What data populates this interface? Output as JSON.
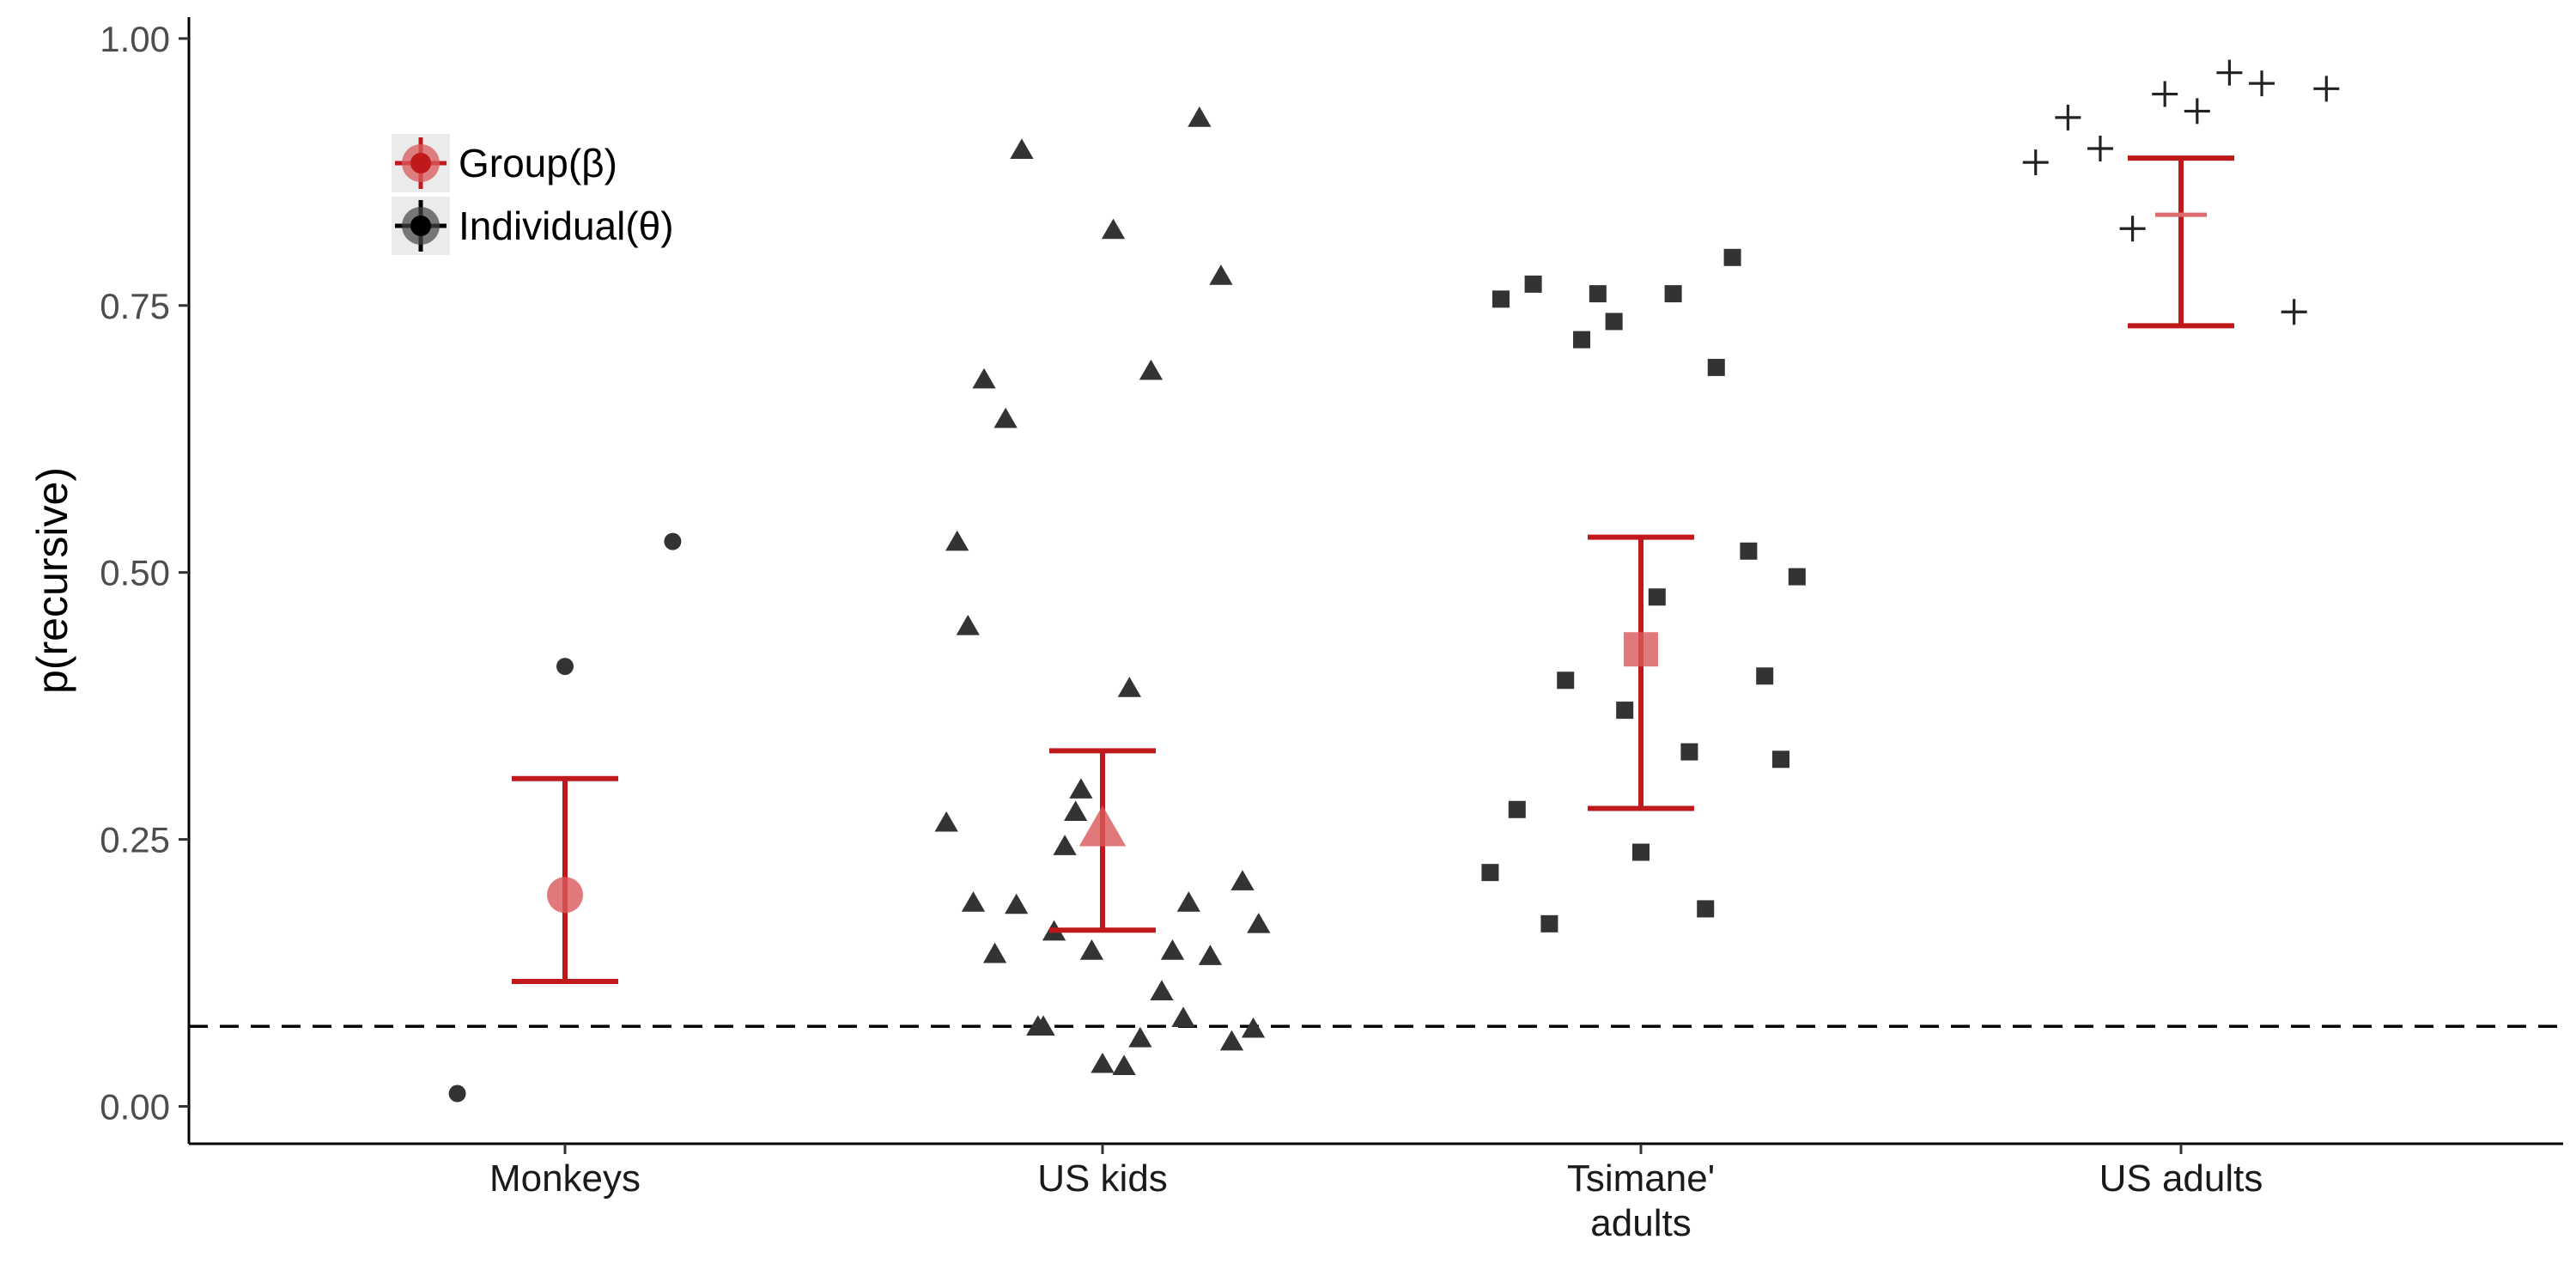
{
  "chart_data": {
    "type": "scatter",
    "ylabel": "p(recursive)",
    "xlabel": "",
    "ylim": [
      -0.035,
      1.02
    ],
    "yticks": [
      0,
      0.25,
      0.5,
      0.75,
      1.0
    ],
    "ytick_labels": [
      "0.00",
      "0.25",
      "0.50",
      "0.75",
      "1.00"
    ],
    "grid": false,
    "legend_position": "top-left",
    "chance_line": 0.075,
    "categories": [
      {
        "key": "monkeys",
        "label_lines": [
          "Monkeys"
        ],
        "shape": "circle"
      },
      {
        "key": "us_kids",
        "label_lines": [
          "US kids"
        ],
        "shape": "triangle"
      },
      {
        "key": "tsimane",
        "label_lines": [
          "Tsimane'",
          "adults"
        ],
        "shape": "square"
      },
      {
        "key": "us_adults",
        "label_lines": [
          "US adults"
        ],
        "shape": "plus"
      }
    ],
    "legend": [
      {
        "label": "Group(β)",
        "color": "#c0191c"
      },
      {
        "label": "Individual(θ)",
        "color": "#000000"
      }
    ],
    "group": [
      {
        "category": "monkeys",
        "estimate": 0.198,
        "lower": 0.117,
        "upper": 0.307
      },
      {
        "category": "us_kids",
        "estimate": 0.259,
        "lower": 0.165,
        "upper": 0.333
      },
      {
        "category": "tsimane",
        "estimate": 0.428,
        "lower": 0.279,
        "upper": 0.533
      },
      {
        "category": "us_adults",
        "estimate": 0.835,
        "lower": 0.731,
        "upper": 0.888
      }
    ],
    "individual": [
      {
        "category": "monkeys",
        "points": [
          {
            "x": -0.2,
            "y": 0.012
          },
          {
            "x": 0.0,
            "y": 0.412
          },
          {
            "x": 0.2,
            "y": 0.529
          }
        ]
      },
      {
        "category": "us_kids",
        "points": [
          {
            "x": 0.18,
            "y": 0.925
          },
          {
            "x": -0.15,
            "y": 0.895
          },
          {
            "x": 0.02,
            "y": 0.82
          },
          {
            "x": 0.22,
            "y": 0.777
          },
          {
            "x": 0.09,
            "y": 0.688
          },
          {
            "x": -0.22,
            "y": 0.68
          },
          {
            "x": -0.18,
            "y": 0.643
          },
          {
            "x": -0.27,
            "y": 0.528
          },
          {
            "x": -0.25,
            "y": 0.449
          },
          {
            "x": 0.05,
            "y": 0.391
          },
          {
            "x": -0.04,
            "y": 0.296
          },
          {
            "x": -0.05,
            "y": 0.275
          },
          {
            "x": -0.29,
            "y": 0.265
          },
          {
            "x": -0.07,
            "y": 0.243
          },
          {
            "x": 0.26,
            "y": 0.21
          },
          {
            "x": -0.24,
            "y": 0.19
          },
          {
            "x": -0.16,
            "y": 0.188
          },
          {
            "x": 0.16,
            "y": 0.19
          },
          {
            "x": 0.29,
            "y": 0.17
          },
          {
            "x": -0.09,
            "y": 0.163
          },
          {
            "x": -0.02,
            "y": 0.145
          },
          {
            "x": 0.13,
            "y": 0.145
          },
          {
            "x": -0.2,
            "y": 0.142
          },
          {
            "x": 0.2,
            "y": 0.14
          },
          {
            "x": 0.11,
            "y": 0.107
          },
          {
            "x": 0.15,
            "y": 0.082
          },
          {
            "x": -0.12,
            "y": 0.074
          },
          {
            "x": -0.11,
            "y": 0.074
          },
          {
            "x": 0.28,
            "y": 0.072
          },
          {
            "x": 0.07,
            "y": 0.063
          },
          {
            "x": 0.24,
            "y": 0.06
          },
          {
            "x": 0.0,
            "y": 0.039
          },
          {
            "x": 0.04,
            "y": 0.037
          }
        ]
      },
      {
        "category": "tsimane",
        "points": [
          {
            "x": 0.17,
            "y": 0.795
          },
          {
            "x": -0.2,
            "y": 0.77
          },
          {
            "x": -0.26,
            "y": 0.756
          },
          {
            "x": -0.08,
            "y": 0.761
          },
          {
            "x": 0.06,
            "y": 0.761
          },
          {
            "x": -0.05,
            "y": 0.735
          },
          {
            "x": -0.11,
            "y": 0.718
          },
          {
            "x": 0.14,
            "y": 0.692
          },
          {
            "x": 0.2,
            "y": 0.52
          },
          {
            "x": 0.29,
            "y": 0.496
          },
          {
            "x": 0.03,
            "y": 0.477
          },
          {
            "x": 0.23,
            "y": 0.403
          },
          {
            "x": -0.14,
            "y": 0.399
          },
          {
            "x": -0.03,
            "y": 0.371
          },
          {
            "x": 0.09,
            "y": 0.332
          },
          {
            "x": 0.26,
            "y": 0.325
          },
          {
            "x": -0.23,
            "y": 0.278
          },
          {
            "x": 0.0,
            "y": 0.238
          },
          {
            "x": -0.28,
            "y": 0.219
          },
          {
            "x": 0.12,
            "y": 0.185
          },
          {
            "x": -0.17,
            "y": 0.171
          }
        ]
      },
      {
        "category": "us_adults",
        "points": [
          {
            "x": 0.09,
            "y": 0.968
          },
          {
            "x": 0.15,
            "y": 0.958
          },
          {
            "x": 0.27,
            "y": 0.953
          },
          {
            "x": -0.03,
            "y": 0.948
          },
          {
            "x": 0.03,
            "y": 0.932
          },
          {
            "x": -0.21,
            "y": 0.926
          },
          {
            "x": -0.15,
            "y": 0.897
          },
          {
            "x": -0.27,
            "y": 0.884
          },
          {
            "x": -0.09,
            "y": 0.822
          },
          {
            "x": 0.21,
            "y": 0.744
          }
        ]
      }
    ]
  }
}
